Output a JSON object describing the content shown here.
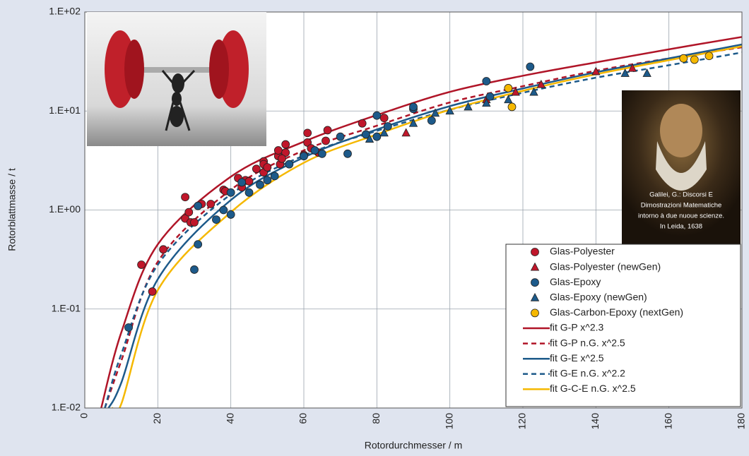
{
  "chart_data": {
    "type": "scatter",
    "xlabel": "Rotordurchmesser / m",
    "ylabel": "Rotorblattmasse / t",
    "xlim": [
      0,
      180
    ],
    "ylim": [
      0.01,
      100
    ],
    "log_y": true,
    "grid": true,
    "legend": "lower right",
    "xticks": [
      0,
      20,
      40,
      60,
      80,
      100,
      120,
      140,
      160,
      180
    ],
    "yticks": [
      {
        "value": 0.01,
        "label": "1.E-02"
      },
      {
        "value": 0.1,
        "label": "1.E-01"
      },
      {
        "value": 1,
        "label": "1.E+00"
      },
      {
        "value": 10,
        "label": "1.E+01"
      },
      {
        "value": 100,
        "label": "1.E+02"
      }
    ],
    "annotations": [
      "Galilei, G.: Discorsi E",
      "Dimostrazioni Matematiche",
      "intorno à due nuoue scienze.",
      "In Leida, 1638"
    ],
    "series": [
      {
        "name": "Glas-Polyester",
        "mode": "markers",
        "marker": "circle",
        "color": "#c0172b",
        "x": [
          15.5,
          21.5,
          18.5,
          27.5,
          27.5,
          28.5,
          29,
          30,
          32,
          34.5,
          38,
          38.5,
          42,
          43,
          44,
          45,
          47,
          49,
          49,
          49,
          50,
          53,
          53,
          53.5,
          55,
          55,
          54,
          61,
          61,
          62,
          64,
          66,
          66.5,
          76,
          82,
          60
        ],
        "values": [
          0.28,
          0.4,
          0.15,
          1.35,
          0.82,
          0.95,
          0.75,
          0.75,
          1.15,
          1.15,
          1.6,
          1.55,
          2.1,
          1.7,
          2.0,
          1.95,
          2.6,
          3.1,
          2.9,
          2.4,
          2.7,
          3.5,
          4.0,
          2.9,
          4.6,
          3.8,
          3.3,
          6.0,
          4.8,
          4.2,
          3.8,
          5.0,
          6.4,
          7.5,
          8.5,
          3.6
        ]
      },
      {
        "name": "Glas-Polyester (newGen)",
        "mode": "markers",
        "marker": "triangle",
        "color": "#c0172b",
        "x": [
          88,
          110,
          118,
          125,
          140,
          150
        ],
        "values": [
          6.0,
          13,
          15.5,
          18.5,
          25,
          27
        ]
      },
      {
        "name": "Glas-Epoxy",
        "mode": "markers",
        "marker": "circle",
        "color": "#1d5a8a",
        "x": [
          12,
          30,
          31,
          31,
          36,
          38,
          40,
          40,
          43,
          45,
          48,
          50,
          52,
          56,
          60,
          63,
          65,
          70,
          72,
          77,
          80,
          80,
          83,
          90,
          95,
          110,
          111,
          122,
          90
        ],
        "values": [
          0.065,
          0.25,
          0.45,
          1.1,
          0.8,
          1.0,
          0.9,
          1.5,
          1.9,
          1.5,
          1.8,
          2.0,
          2.2,
          2.9,
          3.5,
          4.0,
          3.7,
          5.5,
          3.7,
          5.8,
          9,
          5.5,
          7,
          10.5,
          8,
          20,
          14,
          28,
          11
        ]
      },
      {
        "name": "Glas-Epoxy (newGen)",
        "mode": "markers",
        "marker": "triangle",
        "color": "#1d5a8a",
        "x": [
          78,
          82,
          90,
          96,
          100,
          105,
          110,
          116,
          123,
          148,
          154
        ],
        "values": [
          5.2,
          6.0,
          7.5,
          9.5,
          10,
          11,
          12,
          13,
          15.5,
          24,
          24
        ]
      },
      {
        "name": "Glas-Carbon-Epoxy (nextGen)",
        "mode": "markers",
        "marker": "circle",
        "color": "#f5b800",
        "x": [
          116,
          117,
          164,
          167,
          171
        ],
        "values": [
          17,
          11,
          34,
          33,
          36
        ]
      },
      {
        "name": "fit G-P x^2.3",
        "mode": "line",
        "dash": false,
        "color": "#b01528",
        "x": [
          4.5,
          10,
          20,
          40,
          60,
          80,
          100,
          120,
          140,
          160,
          180
        ],
        "values": [
          0.01,
          0.058,
          0.45,
          2.17,
          4.9,
          9.1,
          15.6,
          22.7,
          31,
          42,
          56
        ]
      },
      {
        "name": "fit G-P n.G. x^2.5",
        "mode": "line",
        "dash": true,
        "color": "#b01528",
        "x": [
          5.5,
          10,
          20,
          40,
          60,
          80,
          100,
          120,
          140,
          160,
          180
        ],
        "values": [
          0.01,
          0.03,
          0.3,
          1.6,
          4.0,
          7.1,
          12.2,
          17.8,
          25.5,
          34,
          44
        ]
      },
      {
        "name": "fit G-E x^2.5",
        "mode": "line",
        "dash": false,
        "color": "#1d5a8a",
        "x": [
          6.5,
          10,
          20,
          40,
          60,
          80,
          100,
          120,
          140,
          160,
          180
        ],
        "values": [
          0.01,
          0.018,
          0.2,
          1.26,
          3.4,
          6.5,
          11.2,
          16.9,
          24.6,
          34,
          47
        ]
      },
      {
        "name": "fit G-E n.G. x^2.2",
        "mode": "line",
        "dash": true,
        "color": "#1d5a8a",
        "x": [
          5.5,
          10,
          20,
          40,
          60,
          80,
          100,
          120,
          140,
          160,
          180
        ],
        "values": [
          0.01,
          0.035,
          0.28,
          1.44,
          3.55,
          6.3,
          10.3,
          15.3,
          21.7,
          29,
          39
        ]
      },
      {
        "name": "fit G-C-E n.G. x^2.5",
        "mode": "line",
        "dash": false,
        "color": "#f5b800",
        "x": [
          7.5,
          10,
          20,
          40,
          60,
          80,
          100,
          120,
          140,
          160,
          180
        ],
        "values": [
          0.01,
          0.011,
          0.155,
          0.95,
          3.0,
          5.8,
          10.3,
          16,
          23.5,
          32.6,
          45
        ]
      }
    ]
  }
}
